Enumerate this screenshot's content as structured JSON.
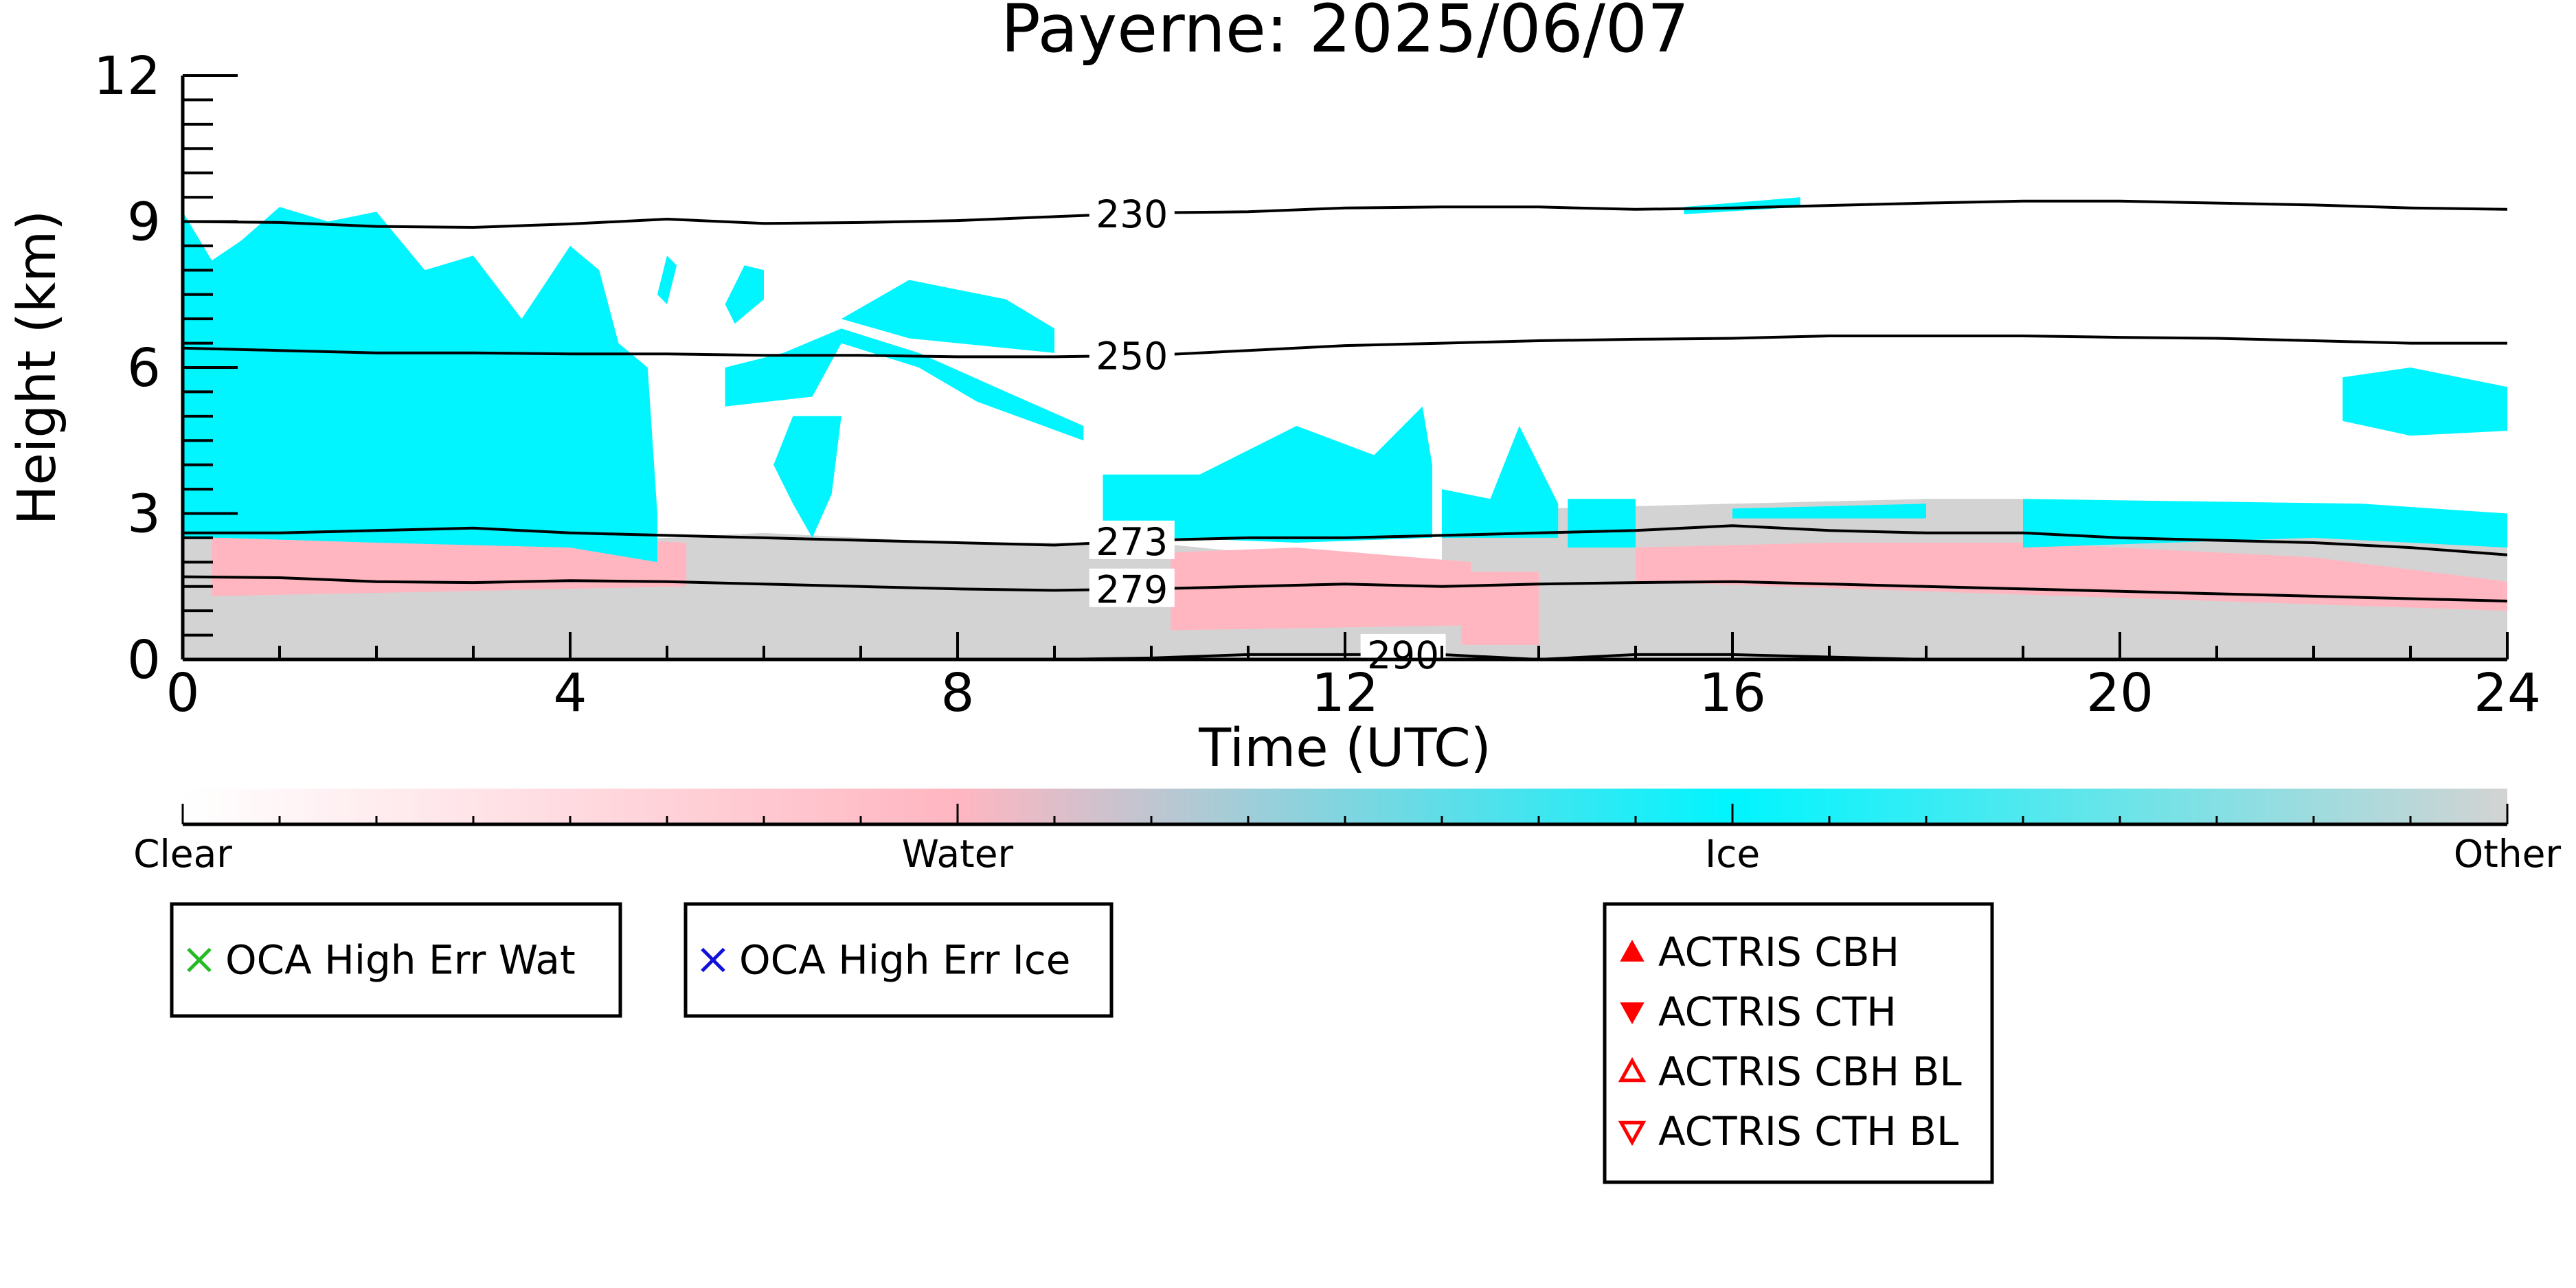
{
  "chart_data": {
    "type": "heatmap",
    "title": "Payerne: 2025/06/07",
    "xlabel": "Time (UTC)",
    "ylabel": "Height (km)",
    "xlim": [
      0,
      24
    ],
    "ylim": [
      0,
      12
    ],
    "xticks": [
      "0",
      "4",
      "8",
      "12",
      "16",
      "20",
      "24"
    ],
    "xtick_values": [
      0,
      4,
      8,
      12,
      16,
      20,
      24
    ],
    "yticks": [
      "0",
      "3",
      "6",
      "9",
      "12"
    ],
    "ytick_values": [
      0,
      3,
      6,
      9,
      12
    ],
    "colors": {
      "clear": "#ffffff",
      "water": "#ffb6c1",
      "ice": "#00f5ff",
      "other": "#d3d3d3",
      "contour": "#000000",
      "oca_water": "#22bb22",
      "oca_ice": "#1010dd",
      "actris": "#ff0000"
    },
    "colorbar": {
      "labels": [
        "Clear",
        "Water",
        "Ice",
        "Other"
      ],
      "positions": [
        0,
        0.3333,
        0.6667,
        1
      ]
    },
    "classification_regions": [
      {
        "class": "other",
        "polygon": [
          [
            0,
            0
          ],
          [
            24,
            0
          ],
          [
            24,
            1.2
          ],
          [
            22,
            1.3
          ],
          [
            20,
            1.35
          ],
          [
            18,
            1.45
          ],
          [
            16,
            1.6
          ],
          [
            14,
            1.65
          ],
          [
            13,
            1.8
          ],
          [
            12,
            2.0
          ],
          [
            11,
            2.2
          ],
          [
            10,
            2.4
          ],
          [
            9,
            2.4
          ],
          [
            8,
            2.4
          ],
          [
            7,
            2.5
          ],
          [
            6,
            2.6
          ],
          [
            5,
            2.5
          ],
          [
            4,
            2.4
          ],
          [
            3,
            2.6
          ],
          [
            2,
            2.6
          ],
          [
            1,
            2.6
          ],
          [
            0,
            2.8
          ]
        ]
      },
      {
        "class": "other",
        "polygon": [
          [
            13,
            1.6
          ],
          [
            24,
            1.4
          ],
          [
            24,
            2.3
          ],
          [
            23,
            2.6
          ],
          [
            21,
            2.9
          ],
          [
            19,
            3.3
          ],
          [
            18,
            3.3
          ],
          [
            16,
            3.2
          ],
          [
            14,
            3.1
          ],
          [
            13,
            2.8
          ]
        ]
      },
      {
        "class": "water",
        "polygon": [
          [
            0.3,
            1.3
          ],
          [
            5.2,
            1.5
          ],
          [
            5.2,
            2.4
          ],
          [
            3,
            2.6
          ],
          [
            0.3,
            2.5
          ]
        ]
      },
      {
        "class": "water",
        "polygon": [
          [
            10.2,
            0.6
          ],
          [
            13.3,
            0.7
          ],
          [
            13.3,
            2.0
          ],
          [
            11.5,
            2.3
          ],
          [
            10.2,
            2.2
          ]
        ]
      },
      {
        "class": "water",
        "polygon": [
          [
            13.2,
            0.3
          ],
          [
            14.0,
            0.3
          ],
          [
            14.0,
            1.8
          ],
          [
            13.2,
            1.8
          ]
        ]
      },
      {
        "class": "water",
        "polygon": [
          [
            15.0,
            1.6
          ],
          [
            24,
            1.0
          ],
          [
            24,
            1.6
          ],
          [
            22,
            2.1
          ],
          [
            19,
            2.4
          ],
          [
            17,
            2.4
          ],
          [
            15,
            2.3
          ]
        ]
      },
      {
        "class": "ice",
        "polygon": [
          [
            0,
            2.5
          ],
          [
            0,
            9.2
          ],
          [
            0.3,
            8.2
          ],
          [
            0.6,
            8.6
          ],
          [
            1.0,
            9.3
          ],
          [
            1.5,
            9.0
          ],
          [
            2.0,
            9.2
          ],
          [
            2.5,
            8.0
          ],
          [
            3.0,
            8.3
          ],
          [
            3.5,
            7.0
          ],
          [
            4.0,
            8.5
          ],
          [
            4.3,
            8.0
          ],
          [
            4.5,
            6.5
          ],
          [
            4.8,
            6.0
          ],
          [
            4.9,
            3.0
          ],
          [
            4.9,
            2.0
          ],
          [
            4.0,
            2.3
          ],
          [
            2.0,
            2.4
          ],
          [
            0.4,
            2.5
          ]
        ]
      },
      {
        "class": "ice",
        "polygon": [
          [
            5.0,
            7.3
          ],
          [
            5.1,
            8.1
          ],
          [
            5.0,
            8.3
          ],
          [
            4.9,
            7.5
          ]
        ]
      },
      {
        "class": "ice",
        "polygon": [
          [
            5.7,
            6.9
          ],
          [
            6.0,
            7.4
          ],
          [
            6.0,
            8.0
          ],
          [
            5.8,
            8.1
          ],
          [
            5.6,
            7.3
          ]
        ]
      },
      {
        "class": "ice",
        "polygon": [
          [
            5.6,
            5.2
          ],
          [
            6.5,
            5.4
          ],
          [
            6.8,
            6.5
          ],
          [
            7.6,
            6.0
          ],
          [
            8.2,
            5.3
          ],
          [
            9.3,
            4.5
          ],
          [
            9.3,
            4.8
          ],
          [
            8.5,
            5.5
          ],
          [
            7.6,
            6.3
          ],
          [
            6.8,
            6.8
          ],
          [
            6.2,
            6.3
          ],
          [
            5.6,
            6.0
          ]
        ]
      },
      {
        "class": "ice",
        "polygon": [
          [
            6.1,
            4.0
          ],
          [
            6.3,
            3.2
          ],
          [
            6.5,
            2.5
          ],
          [
            6.7,
            3.4
          ],
          [
            6.8,
            5.0
          ],
          [
            6.3,
            5.0
          ]
        ]
      },
      {
        "class": "ice",
        "polygon": [
          [
            6.8,
            7.0
          ],
          [
            7.5,
            7.8
          ],
          [
            8.5,
            7.4
          ],
          [
            9.0,
            6.8
          ],
          [
            9.0,
            6.3
          ],
          [
            7.5,
            6.6
          ]
        ]
      },
      {
        "class": "ice",
        "polygon": [
          [
            9.5,
            2.5
          ],
          [
            9.5,
            3.8
          ],
          [
            10.5,
            3.8
          ],
          [
            11.5,
            4.8
          ],
          [
            12.3,
            4.2
          ],
          [
            12.8,
            5.2
          ],
          [
            12.9,
            4.0
          ],
          [
            12.9,
            2.5
          ],
          [
            11.5,
            2.4
          ],
          [
            10.2,
            2.5
          ]
        ]
      },
      {
        "class": "ice",
        "polygon": [
          [
            13.0,
            2.5
          ],
          [
            13.0,
            3.5
          ],
          [
            13.5,
            3.3
          ],
          [
            13.8,
            4.8
          ],
          [
            14.2,
            3.2
          ],
          [
            14.2,
            2.5
          ]
        ]
      },
      {
        "class": "ice",
        "polygon": [
          [
            14.3,
            2.3
          ],
          [
            14.3,
            3.3
          ],
          [
            15.0,
            3.3
          ],
          [
            15.0,
            2.3
          ]
        ]
      },
      {
        "class": "ice",
        "polygon": [
          [
            16.0,
            2.9
          ],
          [
            16.0,
            3.1
          ],
          [
            18.0,
            3.2
          ],
          [
            18.0,
            2.9
          ]
        ]
      },
      {
        "class": "ice",
        "polygon": [
          [
            19.0,
            2.3
          ],
          [
            19.0,
            3.3
          ],
          [
            22.5,
            3.2
          ],
          [
            24.0,
            3.0
          ],
          [
            24.0,
            2.3
          ],
          [
            22.0,
            2.5
          ]
        ]
      },
      {
        "class": "ice",
        "polygon": [
          [
            22.3,
            4.9
          ],
          [
            22.3,
            5.8
          ],
          [
            23.0,
            6.0
          ],
          [
            24.0,
            5.6
          ],
          [
            24.0,
            4.7
          ],
          [
            23.0,
            4.6
          ]
        ]
      },
      {
        "class": "ice",
        "polygon": [
          [
            15.5,
            9.15
          ],
          [
            16.7,
            9.3
          ],
          [
            16.7,
            9.5
          ],
          [
            15.5,
            9.3
          ]
        ]
      }
    ],
    "contours": [
      {
        "label": "230",
        "label_x": 9.8,
        "points": [
          [
            0,
            9.0
          ],
          [
            1,
            8.98
          ],
          [
            2,
            8.9
          ],
          [
            3,
            8.88
          ],
          [
            4,
            8.95
          ],
          [
            5,
            9.05
          ],
          [
            6,
            8.96
          ],
          [
            7,
            8.98
          ],
          [
            8,
            9.02
          ],
          [
            9,
            9.1
          ],
          [
            10,
            9.18
          ],
          [
            11,
            9.2
          ],
          [
            12,
            9.28
          ],
          [
            13,
            9.3
          ],
          [
            14,
            9.3
          ],
          [
            15,
            9.25
          ],
          [
            16,
            9.28
          ],
          [
            17,
            9.33
          ],
          [
            18,
            9.38
          ],
          [
            19,
            9.42
          ],
          [
            20,
            9.42
          ],
          [
            21,
            9.38
          ],
          [
            22,
            9.34
          ],
          [
            23,
            9.28
          ],
          [
            24,
            9.25
          ]
        ]
      },
      {
        "label": "250",
        "label_x": 9.8,
        "points": [
          [
            0,
            6.4
          ],
          [
            1,
            6.35
          ],
          [
            2,
            6.3
          ],
          [
            3,
            6.3
          ],
          [
            4,
            6.28
          ],
          [
            5,
            6.28
          ],
          [
            6,
            6.25
          ],
          [
            7,
            6.25
          ],
          [
            8,
            6.22
          ],
          [
            9,
            6.22
          ],
          [
            10,
            6.25
          ],
          [
            11,
            6.35
          ],
          [
            12,
            6.45
          ],
          [
            13,
            6.5
          ],
          [
            14,
            6.55
          ],
          [
            15,
            6.58
          ],
          [
            16,
            6.6
          ],
          [
            17,
            6.65
          ],
          [
            18,
            6.65
          ],
          [
            19,
            6.65
          ],
          [
            20,
            6.62
          ],
          [
            21,
            6.6
          ],
          [
            22,
            6.55
          ],
          [
            23,
            6.5
          ],
          [
            24,
            6.5
          ]
        ]
      },
      {
        "label": "273",
        "label_x": 9.8,
        "points": [
          [
            0,
            2.6
          ],
          [
            1,
            2.6
          ],
          [
            2,
            2.65
          ],
          [
            3,
            2.7
          ],
          [
            4,
            2.6
          ],
          [
            5,
            2.55
          ],
          [
            6,
            2.5
          ],
          [
            7,
            2.45
          ],
          [
            8,
            2.4
          ],
          [
            9,
            2.35
          ],
          [
            10,
            2.45
          ],
          [
            11,
            2.5
          ],
          [
            12,
            2.5
          ],
          [
            13,
            2.55
          ],
          [
            14,
            2.6
          ],
          [
            15,
            2.65
          ],
          [
            16,
            2.75
          ],
          [
            17,
            2.65
          ],
          [
            18,
            2.6
          ],
          [
            19,
            2.6
          ],
          [
            20,
            2.5
          ],
          [
            21,
            2.45
          ],
          [
            22,
            2.4
          ],
          [
            23,
            2.3
          ],
          [
            24,
            2.15
          ]
        ]
      },
      {
        "label": "279",
        "label_x": 9.8,
        "points": [
          [
            0,
            1.7
          ],
          [
            1,
            1.68
          ],
          [
            2,
            1.6
          ],
          [
            3,
            1.58
          ],
          [
            4,
            1.62
          ],
          [
            5,
            1.6
          ],
          [
            6,
            1.55
          ],
          [
            7,
            1.5
          ],
          [
            8,
            1.45
          ],
          [
            9,
            1.42
          ],
          [
            10,
            1.45
          ],
          [
            11,
            1.5
          ],
          [
            12,
            1.55
          ],
          [
            13,
            1.5
          ],
          [
            14,
            1.55
          ],
          [
            15,
            1.58
          ],
          [
            16,
            1.6
          ],
          [
            17,
            1.55
          ],
          [
            18,
            1.5
          ],
          [
            19,
            1.45
          ],
          [
            20,
            1.4
          ],
          [
            21,
            1.35
          ],
          [
            22,
            1.3
          ],
          [
            23,
            1.25
          ],
          [
            24,
            1.2
          ]
        ]
      },
      {
        "label": "290",
        "label_x": 12.6,
        "points": [
          [
            9.0,
            0.0
          ],
          [
            10.0,
            0.03
          ],
          [
            11.0,
            0.1
          ],
          [
            12.0,
            0.1
          ],
          [
            13.0,
            0.1
          ],
          [
            14.0,
            0.0
          ],
          [
            15.0,
            0.1
          ],
          [
            16.0,
            0.1
          ],
          [
            17.0,
            0.05
          ],
          [
            18.0,
            0.0
          ]
        ]
      }
    ],
    "legends": [
      {
        "placement": "bottom-left",
        "entries": [
          {
            "marker": "x",
            "color": "#22bb22",
            "label": "OCA High Err Wat"
          }
        ]
      },
      {
        "placement": "bottom-left",
        "entries": [
          {
            "marker": "x",
            "color": "#1010dd",
            "label": "OCA High Err Ice"
          }
        ]
      },
      {
        "placement": "bottom-center",
        "entries": [
          {
            "marker": "triangle-up-filled",
            "color": "#ff0000",
            "label": "ACTRIS CBH"
          },
          {
            "marker": "triangle-down-filled",
            "color": "#ff0000",
            "label": "ACTRIS CTH"
          },
          {
            "marker": "triangle-up-open",
            "color": "#ff0000",
            "label": "ACTRIS CBH BL"
          },
          {
            "marker": "triangle-down-open",
            "color": "#ff0000",
            "label": "ACTRIS CTH BL"
          }
        ]
      }
    ],
    "grid": false
  }
}
